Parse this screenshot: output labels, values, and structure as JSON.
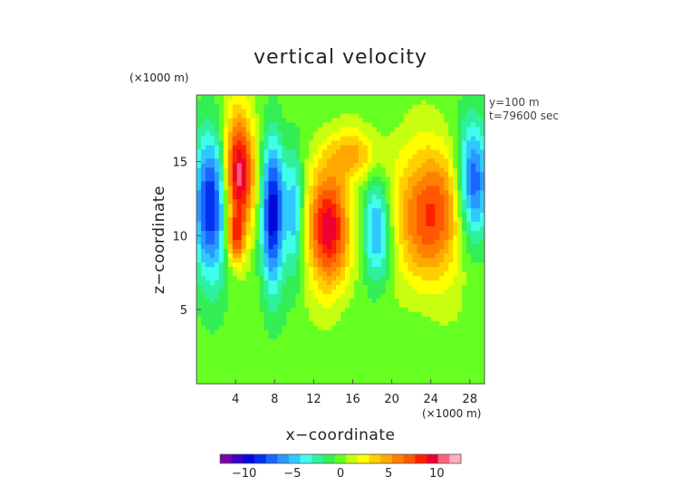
{
  "chart_data": {
    "type": "heatmap",
    "title": "vertical velocity",
    "xlabel": "x−coordinate",
    "ylabel": "z−coordinate",
    "x_unit": "(×1000 m)",
    "y_unit": "(×1000 m)",
    "info_lines": [
      "y=100 m",
      "t=79600 sec"
    ],
    "xlim": [
      0,
      29.5
    ],
    "ylim": [
      0,
      19.5
    ],
    "x_ticks": [
      4,
      8,
      12,
      16,
      20,
      24,
      28
    ],
    "y_ticks": [
      5,
      10,
      15
    ],
    "colorbar": {
      "range": [
        -12.5,
        12.5
      ],
      "ticks": [
        -10,
        -5,
        0,
        5,
        10
      ],
      "colors": [
        "#7a00a8",
        "#3a00c8",
        "#0008d8",
        "#0030f0",
        "#1866ff",
        "#2a98ff",
        "#30c8ff",
        "#40ffe8",
        "#30f0a0",
        "#33ee55",
        "#66ff22",
        "#c8ff10",
        "#ffff00",
        "#ffd000",
        "#ffa800",
        "#ff8000",
        "#ff5800",
        "#ff2000",
        "#ee0030",
        "#ff6080",
        "#ffb0c0"
      ]
    },
    "features": [
      {
        "type": "updraft",
        "x": 4.3,
        "z": 14.2,
        "sx": 1.1,
        "sz": 3.0,
        "w": 11
      },
      {
        "type": "updraft",
        "x": 4.0,
        "z": 9.8,
        "sx": 0.6,
        "sz": 1.2,
        "w": 6
      },
      {
        "type": "downdraft",
        "x": 1.5,
        "z": 12.0,
        "sx": 1.3,
        "sz": 3.5,
        "w": -9
      },
      {
        "type": "downdraft",
        "x": 7.8,
        "z": 11.5,
        "sx": 0.8,
        "sz": 3.5,
        "w": -10
      },
      {
        "type": "downdraft",
        "x": 10.0,
        "z": 11.5,
        "sx": 0.7,
        "sz": 3.0,
        "w": -5
      },
      {
        "type": "updraft",
        "x": 13.5,
        "z": 10.5,
        "sx": 1.5,
        "sz": 2.8,
        "w": 10
      },
      {
        "type": "updraft",
        "x": 16.0,
        "z": 15.5,
        "sx": 1.8,
        "sz": 1.2,
        "w": 4.5
      },
      {
        "type": "downdraft",
        "x": 18.5,
        "z": 10.5,
        "sx": 1.0,
        "sz": 2.5,
        "w": -6
      },
      {
        "type": "updraft",
        "x": 24.0,
        "z": 11.5,
        "sx": 2.6,
        "sz": 3.2,
        "w": 8
      },
      {
        "type": "downdraft",
        "x": 28.3,
        "z": 13.5,
        "sx": 1.2,
        "sz": 3.0,
        "w": -8.5
      }
    ]
  }
}
